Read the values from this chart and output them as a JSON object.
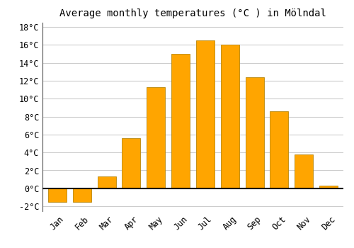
{
  "title": "Average monthly temperatures (°C ) in Mölndal",
  "months": [
    "Jan",
    "Feb",
    "Mar",
    "Apr",
    "May",
    "Jun",
    "Jul",
    "Aug",
    "Sep",
    "Oct",
    "Nov",
    "Dec"
  ],
  "values": [
    -1.5,
    -1.5,
    1.3,
    5.6,
    11.3,
    15.0,
    16.5,
    16.0,
    12.4,
    8.6,
    3.8,
    0.3
  ],
  "bar_color": "#FFA500",
  "bar_edge_color": "#B8860B",
  "ylim": [
    -2.5,
    18.5
  ],
  "yticks": [
    -2,
    0,
    2,
    4,
    6,
    8,
    10,
    12,
    14,
    16,
    18
  ],
  "background_color": "#FFFFFF",
  "plot_bg_color": "#FFFFFF",
  "grid_color": "#CCCCCC",
  "title_fontsize": 10,
  "tick_fontsize": 8.5,
  "bar_width": 0.75
}
